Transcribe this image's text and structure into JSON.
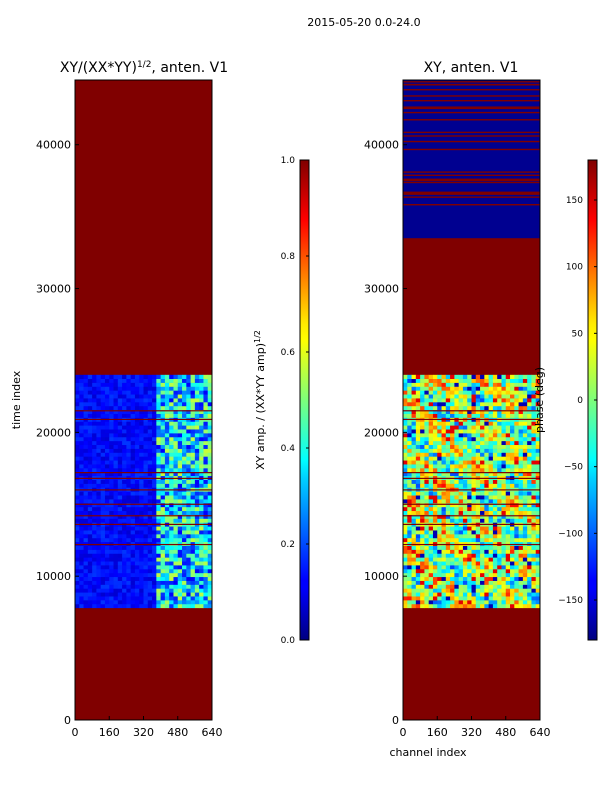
{
  "suptitle": "2015-05-20 0.0-24.0",
  "colors": {
    "background": "#ffffff",
    "colormap": "jet",
    "flag_fill": "#800000",
    "frame": "#000000"
  },
  "chart_data": [
    {
      "type": "heatmap",
      "title_main": "XY/(XX*YY)",
      "title_exp": "1/2",
      "title_suffix": ", anten. V1",
      "xlabel": "",
      "ylabel": "time index",
      "x_range": [
        0,
        640
      ],
      "y_range": [
        0,
        44500
      ],
      "x_ticks": [
        "0",
        "160",
        "320",
        "480",
        "640"
      ],
      "y_ticks": [
        "0",
        "10000",
        "20000",
        "30000",
        "40000"
      ],
      "x_tick_values": [
        0,
        160,
        320,
        480,
        640
      ],
      "y_tick_values": [
        0,
        10000,
        20000,
        30000,
        40000
      ],
      "colorbar": {
        "label_main": "XY amp. / (XX*YY amp)",
        "label_exp": "1/2",
        "range": [
          0,
          1
        ],
        "ticks": [
          "0.0",
          "0.2",
          "0.4",
          "0.6",
          "0.8",
          "1.0"
        ],
        "tick_values": [
          0,
          0.2,
          0.4,
          0.6,
          0.8,
          1.0
        ]
      },
      "valid_time_range": [
        7800,
        24000
      ],
      "flagged_rows": [
        12200,
        13600,
        14200,
        15000,
        16000,
        16800,
        17200,
        20900,
        21500
      ],
      "bright_channel_range": [
        390,
        640
      ]
    },
    {
      "type": "heatmap",
      "title_main": "XY, anten. V1",
      "xlabel": "channel index",
      "ylabel": "",
      "x_range": [
        0,
        640
      ],
      "y_range": [
        0,
        44500
      ],
      "x_ticks": [
        "0",
        "160",
        "320",
        "480",
        "640"
      ],
      "y_ticks": [
        "0",
        "10000",
        "20000",
        "30000",
        "40000"
      ],
      "x_tick_values": [
        0,
        160,
        320,
        480,
        640
      ],
      "y_tick_values": [
        0,
        10000,
        20000,
        30000,
        40000
      ],
      "colorbar": {
        "label": "phase (deg)",
        "range": [
          -180,
          180
        ],
        "ticks": [
          "−150",
          "−100",
          "−50",
          "0",
          "50",
          "100",
          "150"
        ],
        "tick_values": [
          -150,
          -100,
          -50,
          0,
          50,
          100,
          150
        ]
      },
      "valid_time_range": [
        7800,
        24000
      ],
      "high_blue_band_range": [
        33500,
        44500
      ],
      "flagged_rows": [
        12200,
        13600,
        14200,
        15000,
        16000,
        16800,
        17200,
        20900,
        21500
      ]
    }
  ]
}
